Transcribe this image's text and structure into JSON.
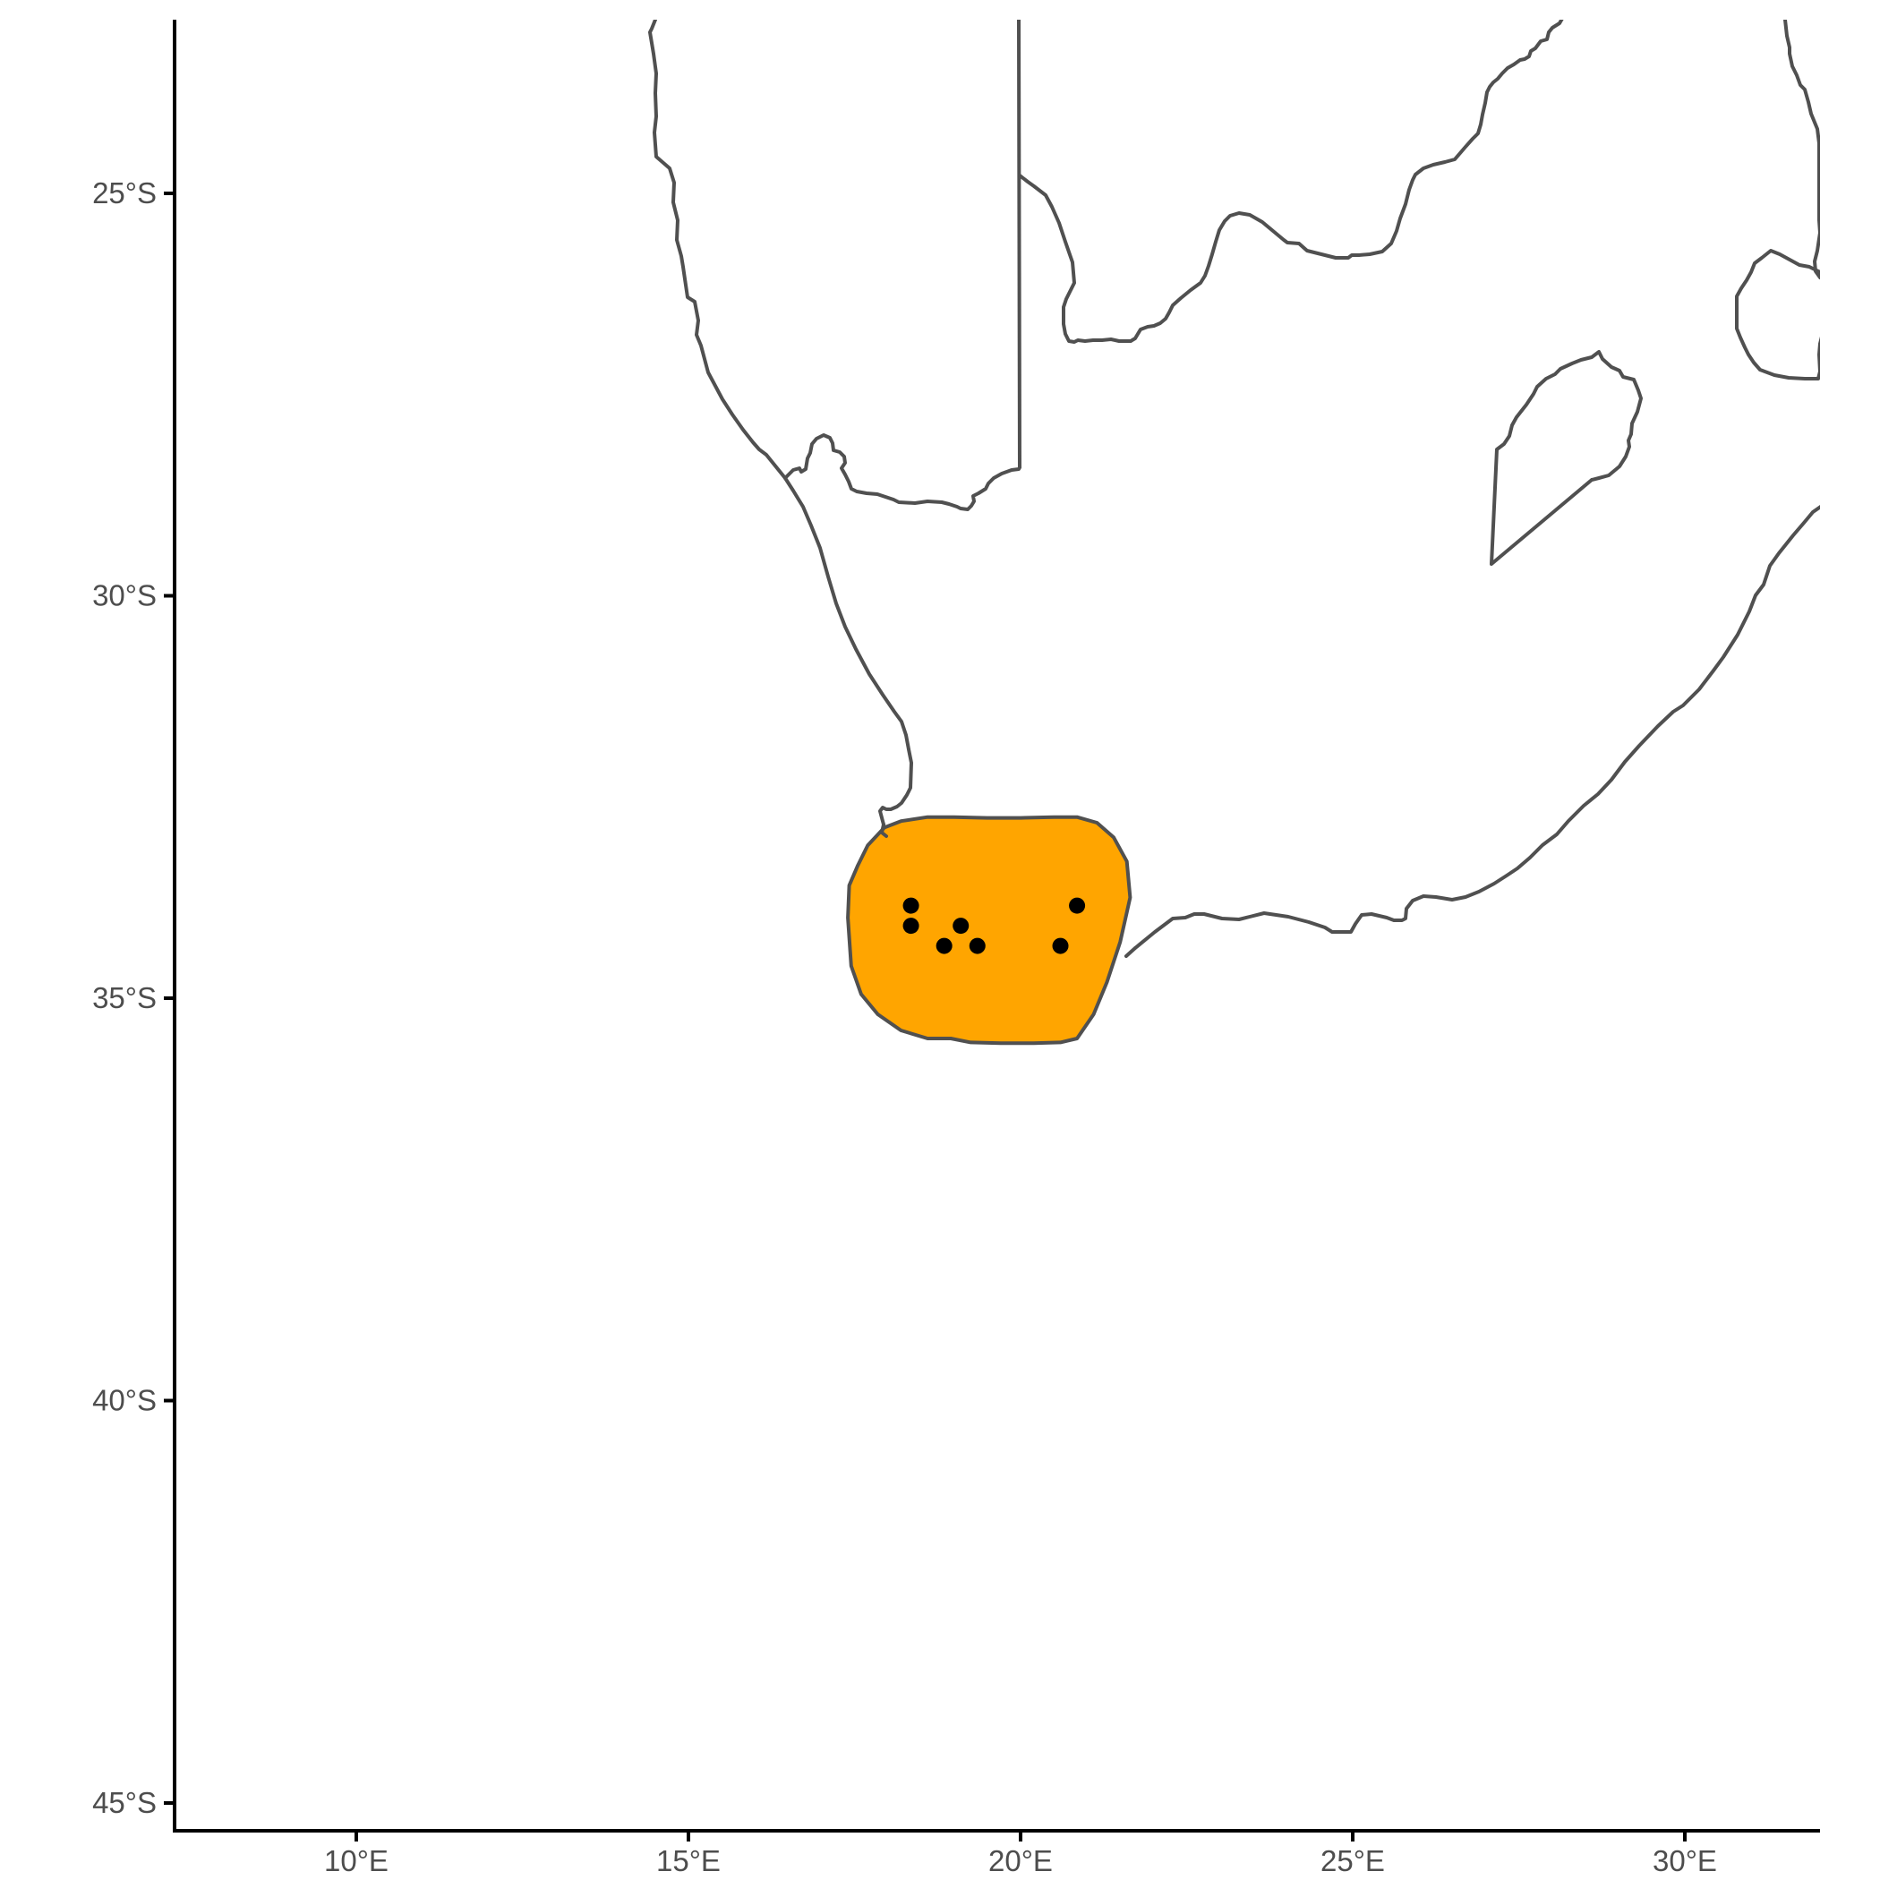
{
  "colors": {
    "background": "#ffffff",
    "border": "#505050",
    "range_fill": "#ffa500",
    "points": "#000000",
    "tick_text": "#4d4d4d"
  },
  "axes": {
    "x_ticks": [
      {
        "value": 10,
        "label": "10°E"
      },
      {
        "value": 15,
        "label": "15°E"
      },
      {
        "value": 20,
        "label": "20°E"
      },
      {
        "value": 25,
        "label": "25°E"
      },
      {
        "value": 30,
        "label": "30°E"
      }
    ],
    "y_ticks": [
      {
        "value": -25,
        "label": "25°S"
      },
      {
        "value": -30,
        "label": "30°S"
      },
      {
        "value": -35,
        "label": "35°S"
      },
      {
        "value": -40,
        "label": "40°S"
      },
      {
        "value": -45,
        "label": "45°S"
      }
    ]
  },
  "chart_data": {
    "type": "scatter",
    "title": "",
    "xlabel": "",
    "ylabel": "",
    "xlim": [
      7.3,
      32
    ],
    "ylim": [
      -45.4,
      -22.9
    ],
    "grid": false,
    "legend": "none",
    "range_polygon": {
      "fill": "#ffa500",
      "lon": [
        18.2,
        18.6,
        19.0,
        19.5,
        20.0,
        20.5,
        20.85,
        21.15,
        21.4,
        21.6,
        21.65,
        21.5,
        21.3,
        21.1,
        20.85,
        20.6,
        20.2,
        19.7,
        19.25,
        18.95,
        18.6,
        18.2,
        17.85,
        17.6,
        17.45,
        17.4,
        17.42,
        17.55,
        17.7,
        17.95
      ],
      "lat": [
        -32.8,
        -32.75,
        -32.75,
        -32.76,
        -32.76,
        -32.75,
        -32.75,
        -32.82,
        -33.0,
        -33.3,
        -33.75,
        -34.3,
        -34.8,
        -35.2,
        -35.5,
        -35.55,
        -35.56,
        -35.56,
        -35.55,
        -35.5,
        -35.5,
        -35.4,
        -35.2,
        -34.95,
        -34.6,
        -34.0,
        -33.6,
        -33.35,
        -33.1,
        -32.88
      ]
    },
    "series": [
      {
        "x": [
          18.35,
          18.35,
          19.1,
          18.85,
          19.35,
          20.85,
          20.6
        ],
        "y": [
          -33.85,
          -34.1,
          -34.1,
          -34.35,
          -34.35,
          -33.85,
          -34.35
        ]
      }
    ]
  }
}
